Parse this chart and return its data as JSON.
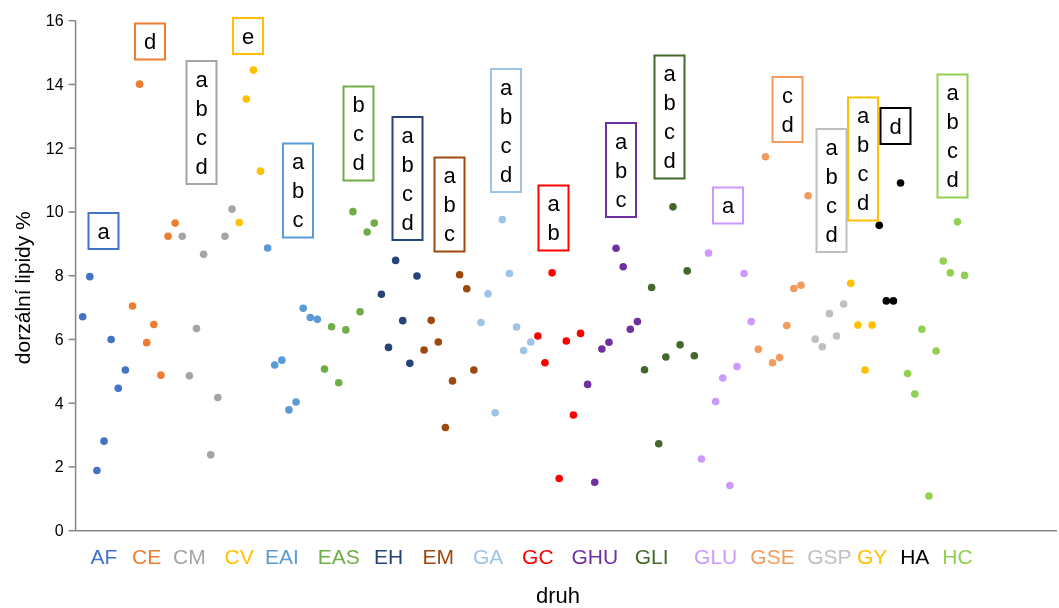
{
  "chart_data": {
    "type": "scatter",
    "xlabel": "druh",
    "ylabel": "dorzální lipidy %",
    "marker": "circle",
    "categories": [
      null,
      null,
      null,
      "AF",
      null,
      null,
      null,
      null,
      null,
      "CE",
      null,
      null,
      null,
      null,
      null,
      "CM",
      null,
      null,
      null,
      null,
      null,
      null,
      "CV",
      null,
      null,
      null,
      null,
      null,
      "EAI",
      null,
      null,
      null,
      null,
      null,
      null,
      null,
      "EAS",
      null,
      null,
      null,
      null,
      null,
      null,
      "EH",
      null,
      null,
      null,
      null,
      null,
      null,
      "EM",
      null,
      null,
      null,
      null,
      null,
      null,
      "GA",
      null,
      null,
      null,
      null,
      null,
      null,
      "GC",
      null,
      null,
      null,
      null,
      null,
      null,
      null,
      "GHU",
      null,
      null,
      null,
      null,
      null,
      null,
      null,
      "GLI",
      null,
      null,
      null,
      null,
      null,
      null,
      null,
      null,
      "GLU",
      null,
      null,
      null,
      null,
      null,
      null,
      null,
      "GSE",
      null,
      null,
      null,
      null,
      null,
      null,
      null,
      "GSP",
      null,
      null,
      null,
      null,
      null,
      "GY",
      null,
      null,
      null,
      null,
      null,
      "HA",
      null,
      null,
      null,
      null,
      null,
      "HC",
      null
    ],
    "ylim": [
      0,
      16
    ],
    "yticks": [
      0,
      2,
      4,
      6,
      8,
      10,
      12,
      14,
      16
    ],
    "series": [
      {
        "color": "#4472c4",
        "values": [
          6.71,
          7.97,
          1.89,
          2.81,
          6.0,
          4.47,
          5.04,
          null,
          null,
          null,
          null,
          null,
          null,
          null,
          null,
          null,
          null,
          null,
          null,
          null,
          null,
          null,
          null,
          null,
          null,
          null,
          null,
          null,
          null,
          null,
          null,
          null,
          null,
          null,
          null,
          null,
          null,
          null,
          null,
          null,
          null,
          null,
          null,
          null,
          null,
          null,
          null,
          null,
          null,
          null,
          null,
          null,
          null,
          null,
          null,
          null,
          null,
          null,
          null,
          null,
          null,
          null,
          null,
          null,
          null,
          null,
          null,
          null,
          null,
          null,
          null,
          null,
          null,
          null,
          null,
          null,
          null,
          null,
          null,
          null,
          null,
          null,
          null,
          null,
          null,
          null,
          null,
          null,
          null,
          null,
          null,
          null,
          null,
          null,
          null,
          null,
          null,
          null,
          null,
          null,
          null,
          null,
          null,
          null,
          null,
          null,
          null,
          null,
          null,
          null,
          null,
          null,
          null,
          null,
          null,
          null,
          null,
          null,
          null,
          null,
          null,
          null,
          null,
          null,
          null
        ]
      },
      {
        "color": "#ed7d31",
        "values": [
          null,
          null,
          null,
          null,
          null,
          null,
          null,
          7.05,
          14.01,
          5.9,
          6.47,
          4.88,
          9.24,
          9.65,
          null,
          null,
          null,
          null,
          null,
          null,
          null,
          null,
          null,
          null,
          null,
          null,
          null,
          null,
          null,
          null,
          null,
          null,
          null,
          null,
          null,
          null,
          null,
          null,
          null,
          null,
          null,
          null,
          null,
          null,
          null,
          null,
          null,
          null,
          null,
          null,
          null,
          null,
          null,
          null,
          null,
          null,
          null,
          null,
          null,
          null,
          null,
          null,
          null,
          null,
          null,
          null,
          null,
          null,
          null,
          null,
          null,
          null,
          null,
          null,
          null,
          null,
          null,
          null,
          null,
          null,
          null,
          null,
          null,
          null,
          null,
          null,
          null,
          null,
          null,
          null,
          null,
          null,
          null,
          null,
          null,
          null,
          null,
          null,
          null,
          null,
          null,
          null,
          null,
          null,
          null,
          null,
          null,
          null,
          null,
          null,
          null,
          null,
          null,
          null,
          null,
          null,
          null,
          null,
          null,
          null,
          null,
          null,
          null,
          null,
          null
        ]
      },
      {
        "color": "#a5a5a5",
        "values": [
          null,
          null,
          null,
          null,
          null,
          null,
          null,
          null,
          null,
          null,
          null,
          null,
          null,
          null,
          9.24,
          4.86,
          6.34,
          8.67,
          2.38,
          4.18,
          9.24,
          10.09,
          null,
          null,
          null,
          null,
          null,
          null,
          null,
          null,
          null,
          null,
          null,
          null,
          null,
          null,
          null,
          null,
          null,
          null,
          null,
          null,
          null,
          null,
          null,
          null,
          null,
          null,
          null,
          null,
          null,
          null,
          null,
          null,
          null,
          null,
          null,
          null,
          null,
          null,
          null,
          null,
          null,
          null,
          null,
          null,
          null,
          null,
          null,
          null,
          null,
          null,
          null,
          null,
          null,
          null,
          null,
          null,
          null,
          null,
          null,
          null,
          null,
          null,
          null,
          null,
          null,
          null,
          null,
          null,
          null,
          null,
          null,
          null,
          null,
          null,
          null,
          null,
          null,
          null,
          null,
          null,
          null,
          null,
          null,
          null,
          null,
          null,
          null,
          null,
          null,
          null,
          null,
          null,
          null,
          null,
          null,
          null,
          null,
          null,
          null,
          null,
          null,
          null,
          null
        ]
      },
      {
        "color": "#ffc000",
        "values": [
          null,
          null,
          null,
          null,
          null,
          null,
          null,
          null,
          null,
          null,
          null,
          null,
          null,
          null,
          null,
          null,
          null,
          null,
          null,
          null,
          null,
          null,
          9.67,
          13.54,
          14.45,
          11.28,
          null,
          null,
          null,
          null,
          null,
          null,
          null,
          null,
          null,
          null,
          null,
          null,
          null,
          null,
          null,
          null,
          null,
          null,
          null,
          null,
          null,
          null,
          null,
          null,
          null,
          null,
          null,
          null,
          null,
          null,
          null,
          null,
          null,
          null,
          null,
          null,
          null,
          null,
          null,
          null,
          null,
          null,
          null,
          null,
          null,
          null,
          null,
          null,
          null,
          null,
          null,
          null,
          null,
          null,
          null,
          null,
          null,
          null,
          null,
          null,
          null,
          null,
          null,
          null,
          null,
          null,
          null,
          null,
          null,
          null,
          null,
          null,
          null,
          null,
          null,
          null,
          null,
          null,
          null,
          null,
          null,
          null,
          null,
          null,
          null,
          null,
          null,
          null,
          null,
          null,
          null,
          null,
          null,
          null,
          null,
          null,
          null,
          null,
          null
        ]
      },
      {
        "color": "#5b9bd5",
        "values": [
          null,
          null,
          null,
          null,
          null,
          null,
          null,
          null,
          null,
          null,
          null,
          null,
          null,
          null,
          null,
          null,
          null,
          null,
          null,
          null,
          null,
          null,
          null,
          null,
          null,
          null,
          8.87,
          5.2,
          5.35,
          3.79,
          4.04,
          6.98,
          6.69,
          6.63,
          null,
          null,
          null,
          null,
          null,
          null,
          null,
          null,
          null,
          null,
          null,
          null,
          null,
          null,
          null,
          null,
          null,
          null,
          null,
          null,
          null,
          null,
          null,
          null,
          null,
          null,
          null,
          null,
          null,
          null,
          null,
          null,
          null,
          null,
          null,
          null,
          null,
          null,
          null,
          null,
          null,
          null,
          null,
          null,
          null,
          null,
          null,
          null,
          null,
          null,
          null,
          null,
          null,
          null,
          null,
          null,
          null,
          null,
          null,
          null,
          null,
          null,
          null,
          null,
          null,
          null,
          null,
          null,
          null,
          null,
          null,
          null,
          null,
          null,
          null,
          null,
          null,
          null,
          null,
          null,
          null,
          null,
          null,
          null,
          null,
          null,
          null,
          null,
          null,
          null,
          null
        ]
      },
      {
        "color": "#70ad47",
        "values": [
          null,
          null,
          null,
          null,
          null,
          null,
          null,
          null,
          null,
          null,
          null,
          null,
          null,
          null,
          null,
          null,
          null,
          null,
          null,
          null,
          null,
          null,
          null,
          null,
          null,
          null,
          null,
          null,
          null,
          null,
          null,
          null,
          null,
          null,
          5.07,
          6.4,
          4.64,
          6.3,
          10.01,
          6.87,
          9.37,
          9.65,
          null,
          null,
          null,
          null,
          null,
          null,
          null,
          null,
          null,
          null,
          null,
          null,
          null,
          null,
          null,
          null,
          null,
          null,
          null,
          null,
          null,
          null,
          null,
          null,
          null,
          null,
          null,
          null,
          null,
          null,
          null,
          null,
          null,
          null,
          null,
          null,
          null,
          null,
          null,
          null,
          null,
          null,
          null,
          null,
          null,
          null,
          null,
          null,
          null,
          null,
          null,
          null,
          null,
          null,
          null,
          null,
          null,
          null,
          null,
          null,
          null,
          null,
          null,
          null,
          null,
          null,
          null,
          null,
          null,
          null,
          null,
          null,
          null,
          null,
          null,
          null,
          null,
          null,
          null,
          null,
          null,
          null,
          null
        ]
      },
      {
        "color": "#264478",
        "values": [
          null,
          null,
          null,
          null,
          null,
          null,
          null,
          null,
          null,
          null,
          null,
          null,
          null,
          null,
          null,
          null,
          null,
          null,
          null,
          null,
          null,
          null,
          null,
          null,
          null,
          null,
          null,
          null,
          null,
          null,
          null,
          null,
          null,
          null,
          null,
          null,
          null,
          null,
          null,
          null,
          null,
          null,
          7.42,
          5.75,
          8.48,
          6.59,
          5.25,
          7.99,
          null,
          null,
          null,
          null,
          null,
          null,
          null,
          null,
          null,
          null,
          null,
          null,
          null,
          null,
          null,
          null,
          null,
          null,
          null,
          null,
          null,
          null,
          null,
          null,
          null,
          null,
          null,
          null,
          null,
          null,
          null,
          null,
          null,
          null,
          null,
          null,
          null,
          null,
          null,
          null,
          null,
          null,
          null,
          null,
          null,
          null,
          null,
          null,
          null,
          null,
          null,
          null,
          null,
          null,
          null,
          null,
          null,
          null,
          null,
          null,
          null,
          null,
          null,
          null,
          null,
          null,
          null,
          null,
          null,
          null,
          null,
          null,
          null,
          null,
          null,
          null,
          null
        ]
      },
      {
        "color": "#9e480e",
        "values": [
          null,
          null,
          null,
          null,
          null,
          null,
          null,
          null,
          null,
          null,
          null,
          null,
          null,
          null,
          null,
          null,
          null,
          null,
          null,
          null,
          null,
          null,
          null,
          null,
          null,
          null,
          null,
          null,
          null,
          null,
          null,
          null,
          null,
          null,
          null,
          null,
          null,
          null,
          null,
          null,
          null,
          null,
          null,
          null,
          null,
          null,
          null,
          null,
          5.67,
          6.6,
          5.92,
          3.24,
          4.7,
          8.03,
          7.59,
          5.04,
          null,
          null,
          null,
          null,
          null,
          null,
          null,
          null,
          null,
          null,
          null,
          null,
          null,
          null,
          null,
          null,
          null,
          null,
          null,
          null,
          null,
          null,
          null,
          null,
          null,
          null,
          null,
          null,
          null,
          null,
          null,
          null,
          null,
          null,
          null,
          null,
          null,
          null,
          null,
          null,
          null,
          null,
          null,
          null,
          null,
          null,
          null,
          null,
          null,
          null,
          null,
          null,
          null,
          null,
          null,
          null,
          null,
          null,
          null,
          null,
          null,
          null,
          null,
          null,
          null,
          null,
          null,
          null,
          null
        ]
      },
      {
        "color": "#9dc3e6",
        "values": [
          null,
          null,
          null,
          null,
          null,
          null,
          null,
          null,
          null,
          null,
          null,
          null,
          null,
          null,
          null,
          null,
          null,
          null,
          null,
          null,
          null,
          null,
          null,
          null,
          null,
          null,
          null,
          null,
          null,
          null,
          null,
          null,
          null,
          null,
          null,
          null,
          null,
          null,
          null,
          null,
          null,
          null,
          null,
          null,
          null,
          null,
          null,
          null,
          null,
          null,
          null,
          null,
          null,
          null,
          null,
          null,
          6.53,
          7.43,
          3.7,
          9.76,
          8.07,
          6.39,
          5.65,
          5.92,
          null,
          null,
          null,
          null,
          null,
          null,
          null,
          null,
          null,
          null,
          null,
          null,
          null,
          null,
          null,
          null,
          null,
          null,
          null,
          null,
          null,
          null,
          null,
          null,
          null,
          null,
          null,
          null,
          null,
          null,
          null,
          null,
          null,
          null,
          null,
          null,
          null,
          null,
          null,
          null,
          null,
          null,
          null,
          null,
          null,
          null,
          null,
          null,
          null,
          null,
          null,
          null,
          null,
          null,
          null,
          null,
          null,
          null,
          null,
          null,
          null
        ]
      },
      {
        "color": "#ff0000",
        "values": [
          null,
          null,
          null,
          null,
          null,
          null,
          null,
          null,
          null,
          null,
          null,
          null,
          null,
          null,
          null,
          null,
          null,
          null,
          null,
          null,
          null,
          null,
          null,
          null,
          null,
          null,
          null,
          null,
          null,
          null,
          null,
          null,
          null,
          null,
          null,
          null,
          null,
          null,
          null,
          null,
          null,
          null,
          null,
          null,
          null,
          null,
          null,
          null,
          null,
          null,
          null,
          null,
          null,
          null,
          null,
          null,
          null,
          null,
          null,
          null,
          null,
          null,
          null,
          null,
          6.11,
          5.27,
          8.09,
          1.64,
          5.95,
          3.63,
          6.19,
          null,
          null,
          null,
          null,
          null,
          null,
          null,
          null,
          null,
          null,
          null,
          null,
          null,
          null,
          null,
          null,
          null,
          null,
          null,
          null,
          null,
          null,
          null,
          null,
          null,
          null,
          null,
          null,
          null,
          null,
          null,
          null,
          null,
          null,
          null,
          null,
          null,
          null,
          null,
          null,
          null,
          null,
          null,
          null,
          null,
          null,
          null,
          null,
          null,
          null,
          null,
          null,
          null,
          null
        ]
      },
      {
        "color": "#7030a0",
        "values": [
          null,
          null,
          null,
          null,
          null,
          null,
          null,
          null,
          null,
          null,
          null,
          null,
          null,
          null,
          null,
          null,
          null,
          null,
          null,
          null,
          null,
          null,
          null,
          null,
          null,
          null,
          null,
          null,
          null,
          null,
          null,
          null,
          null,
          null,
          null,
          null,
          null,
          null,
          null,
          null,
          null,
          null,
          null,
          null,
          null,
          null,
          null,
          null,
          null,
          null,
          null,
          null,
          null,
          null,
          null,
          null,
          null,
          null,
          null,
          null,
          null,
          null,
          null,
          null,
          null,
          null,
          null,
          null,
          null,
          null,
          null,
          4.59,
          1.52,
          5.7,
          5.91,
          8.86,
          8.28,
          6.32,
          6.56,
          null,
          null,
          null,
          null,
          null,
          null,
          null,
          null,
          null,
          null,
          null,
          null,
          null,
          null,
          null,
          null,
          null,
          null,
          null,
          null,
          null,
          null,
          null,
          null,
          null,
          null,
          null,
          null,
          null,
          null,
          null,
          null,
          null,
          null,
          null,
          null,
          null,
          null,
          null,
          null,
          null,
          null,
          null,
          null,
          null,
          null
        ]
      },
      {
        "color": "#43682b",
        "values": [
          null,
          null,
          null,
          null,
          null,
          null,
          null,
          null,
          null,
          null,
          null,
          null,
          null,
          null,
          null,
          null,
          null,
          null,
          null,
          null,
          null,
          null,
          null,
          null,
          null,
          null,
          null,
          null,
          null,
          null,
          null,
          null,
          null,
          null,
          null,
          null,
          null,
          null,
          null,
          null,
          null,
          null,
          null,
          null,
          null,
          null,
          null,
          null,
          null,
          null,
          null,
          null,
          null,
          null,
          null,
          null,
          null,
          null,
          null,
          null,
          null,
          null,
          null,
          null,
          null,
          null,
          null,
          null,
          null,
          null,
          null,
          null,
          null,
          null,
          null,
          null,
          null,
          null,
          null,
          5.05,
          7.63,
          2.73,
          5.45,
          10.16,
          5.83,
          8.15,
          5.49,
          null,
          null,
          null,
          null,
          null,
          null,
          null,
          null,
          null,
          null,
          null,
          null,
          null,
          null,
          null,
          null,
          null,
          null,
          null,
          null,
          null,
          null,
          null,
          null,
          null,
          null,
          null,
          null,
          null,
          null,
          null,
          null,
          null,
          null,
          null,
          null,
          null,
          null
        ]
      },
      {
        "color": "#cc99ff",
        "values": [
          null,
          null,
          null,
          null,
          null,
          null,
          null,
          null,
          null,
          null,
          null,
          null,
          null,
          null,
          null,
          null,
          null,
          null,
          null,
          null,
          null,
          null,
          null,
          null,
          null,
          null,
          null,
          null,
          null,
          null,
          null,
          null,
          null,
          null,
          null,
          null,
          null,
          null,
          null,
          null,
          null,
          null,
          null,
          null,
          null,
          null,
          null,
          null,
          null,
          null,
          null,
          null,
          null,
          null,
          null,
          null,
          null,
          null,
          null,
          null,
          null,
          null,
          null,
          null,
          null,
          null,
          null,
          null,
          null,
          null,
          null,
          null,
          null,
          null,
          null,
          null,
          null,
          null,
          null,
          null,
          null,
          null,
          null,
          null,
          null,
          null,
          null,
          2.25,
          8.71,
          4.05,
          4.79,
          1.42,
          5.15,
          8.07,
          6.56,
          null,
          null,
          null,
          null,
          null,
          null,
          null,
          null,
          null,
          null,
          null,
          null,
          null,
          null,
          null,
          null,
          null,
          null,
          null,
          null,
          null,
          null,
          null,
          null,
          null,
          null,
          null,
          null,
          null,
          null
        ]
      },
      {
        "color": "#f19b5f",
        "values": [
          null,
          null,
          null,
          null,
          null,
          null,
          null,
          null,
          null,
          null,
          null,
          null,
          null,
          null,
          null,
          null,
          null,
          null,
          null,
          null,
          null,
          null,
          null,
          null,
          null,
          null,
          null,
          null,
          null,
          null,
          null,
          null,
          null,
          null,
          null,
          null,
          null,
          null,
          null,
          null,
          null,
          null,
          null,
          null,
          null,
          null,
          null,
          null,
          null,
          null,
          null,
          null,
          null,
          null,
          null,
          null,
          null,
          null,
          null,
          null,
          null,
          null,
          null,
          null,
          null,
          null,
          null,
          null,
          null,
          null,
          null,
          null,
          null,
          null,
          null,
          null,
          null,
          null,
          null,
          null,
          null,
          null,
          null,
          null,
          null,
          null,
          null,
          null,
          null,
          null,
          null,
          null,
          null,
          null,
          null,
          5.69,
          11.73,
          5.27,
          5.43,
          6.44,
          7.6,
          7.7,
          10.51,
          null,
          null,
          null,
          null,
          null,
          null,
          null,
          null,
          null,
          null,
          null,
          null,
          null,
          null,
          null,
          null,
          null,
          null,
          null,
          null,
          null,
          null
        ]
      },
      {
        "color": "#bfbfbf",
        "values": [
          null,
          null,
          null,
          null,
          null,
          null,
          null,
          null,
          null,
          null,
          null,
          null,
          null,
          null,
          null,
          null,
          null,
          null,
          null,
          null,
          null,
          null,
          null,
          null,
          null,
          null,
          null,
          null,
          null,
          null,
          null,
          null,
          null,
          null,
          null,
          null,
          null,
          null,
          null,
          null,
          null,
          null,
          null,
          null,
          null,
          null,
          null,
          null,
          null,
          null,
          null,
          null,
          null,
          null,
          null,
          null,
          null,
          null,
          null,
          null,
          null,
          null,
          null,
          null,
          null,
          null,
          null,
          null,
          null,
          null,
          null,
          null,
          null,
          null,
          null,
          null,
          null,
          null,
          null,
          null,
          null,
          null,
          null,
          null,
          null,
          null,
          null,
          null,
          null,
          null,
          null,
          null,
          null,
          null,
          null,
          null,
          null,
          null,
          null,
          null,
          null,
          null,
          null,
          6.01,
          5.77,
          6.81,
          6.11,
          7.11,
          null,
          null,
          null,
          null,
          null,
          null,
          null,
          null,
          null,
          null,
          null,
          null,
          null,
          null,
          null,
          null,
          null
        ]
      },
      {
        "color": "#ffc000",
        "values": [
          null,
          null,
          null,
          null,
          null,
          null,
          null,
          null,
          null,
          null,
          null,
          null,
          null,
          null,
          null,
          null,
          null,
          null,
          null,
          null,
          null,
          null,
          null,
          null,
          null,
          null,
          null,
          null,
          null,
          null,
          null,
          null,
          null,
          null,
          null,
          null,
          null,
          null,
          null,
          null,
          null,
          null,
          null,
          null,
          null,
          null,
          null,
          null,
          null,
          null,
          null,
          null,
          null,
          null,
          null,
          null,
          null,
          null,
          null,
          null,
          null,
          null,
          null,
          null,
          null,
          null,
          null,
          null,
          null,
          null,
          null,
          null,
          null,
          null,
          null,
          null,
          null,
          null,
          null,
          null,
          null,
          null,
          null,
          null,
          null,
          null,
          null,
          null,
          null,
          null,
          null,
          null,
          null,
          null,
          null,
          null,
          null,
          null,
          null,
          null,
          null,
          null,
          null,
          null,
          null,
          null,
          null,
          null,
          7.76,
          6.45,
          5.04,
          6.45,
          null,
          null,
          null,
          null,
          null,
          null,
          null,
          null,
          null,
          null,
          null,
          null,
          null
        ]
      },
      {
        "color": "#000000",
        "values": [
          null,
          null,
          null,
          null,
          null,
          null,
          null,
          null,
          null,
          null,
          null,
          null,
          null,
          null,
          null,
          null,
          null,
          null,
          null,
          null,
          null,
          null,
          null,
          null,
          null,
          null,
          null,
          null,
          null,
          null,
          null,
          null,
          null,
          null,
          null,
          null,
          null,
          null,
          null,
          null,
          null,
          null,
          null,
          null,
          null,
          null,
          null,
          null,
          null,
          null,
          null,
          null,
          null,
          null,
          null,
          null,
          null,
          null,
          null,
          null,
          null,
          null,
          null,
          null,
          null,
          null,
          null,
          null,
          null,
          null,
          null,
          null,
          null,
          null,
          null,
          null,
          null,
          null,
          null,
          null,
          null,
          null,
          null,
          null,
          null,
          null,
          null,
          null,
          null,
          null,
          null,
          null,
          null,
          null,
          null,
          null,
          null,
          null,
          null,
          null,
          null,
          null,
          null,
          null,
          null,
          null,
          null,
          null,
          null,
          null,
          null,
          null,
          9.58,
          7.21,
          7.21,
          10.91,
          null,
          null,
          null,
          null,
          null,
          null,
          null,
          null,
          null
        ]
      },
      {
        "color": "#92d050",
        "values": [
          null,
          null,
          null,
          null,
          null,
          null,
          null,
          null,
          null,
          null,
          null,
          null,
          null,
          null,
          null,
          null,
          null,
          null,
          null,
          null,
          null,
          null,
          null,
          null,
          null,
          null,
          null,
          null,
          null,
          null,
          null,
          null,
          null,
          null,
          null,
          null,
          null,
          null,
          null,
          null,
          null,
          null,
          null,
          null,
          null,
          null,
          null,
          null,
          null,
          null,
          null,
          null,
          null,
          null,
          null,
          null,
          null,
          null,
          null,
          null,
          null,
          null,
          null,
          null,
          null,
          null,
          null,
          null,
          null,
          null,
          null,
          null,
          null,
          null,
          null,
          null,
          null,
          null,
          null,
          null,
          null,
          null,
          null,
          null,
          null,
          null,
          null,
          null,
          null,
          null,
          null,
          null,
          null,
          null,
          null,
          null,
          null,
          null,
          null,
          null,
          null,
          null,
          null,
          null,
          null,
          null,
          null,
          null,
          null,
          null,
          null,
          null,
          null,
          null,
          null,
          null,
          4.93,
          4.29,
          6.32,
          1.09,
          5.64,
          8.46,
          8.09,
          9.69,
          8.01
        ]
      }
    ],
    "annotations": [
      "a",
      "d",
      "a\nb\nc\nd",
      "e",
      "a\nb\nc",
      "b\nc\nd",
      "a\nb\nc\nd",
      "a\nb\nc",
      "a\nb\nc\nd",
      "a\nb",
      "a\nb\nc",
      "a\nb\nc\nd",
      "a",
      "c\nd",
      "a\nb\nc\nd",
      "a\nb\nc\nd",
      "d",
      "a\nb\nc\nd"
    ]
  }
}
